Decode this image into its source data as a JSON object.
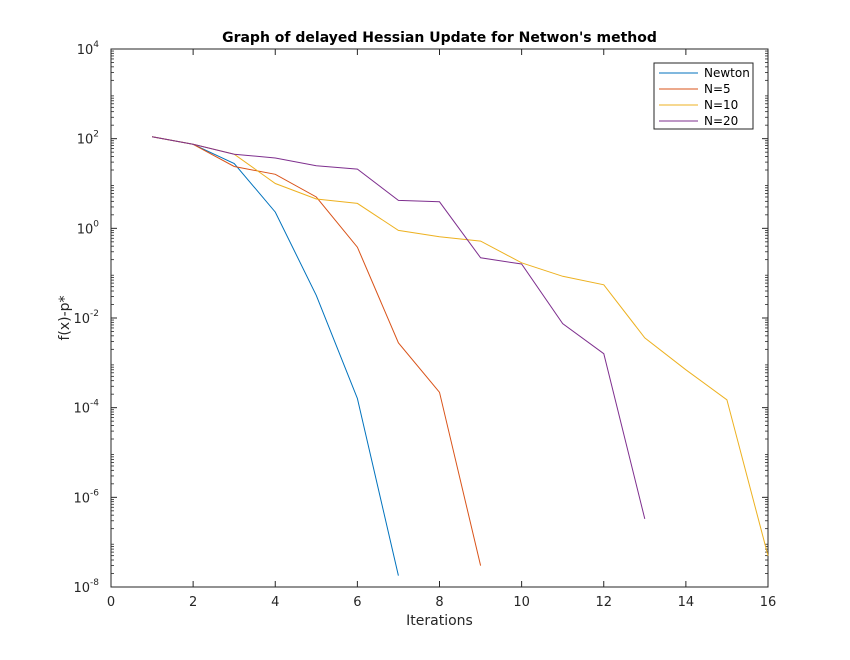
{
  "chart_data": {
    "type": "line",
    "title": "Graph of delayed Hessian Update for Netwon's method",
    "xlabel": "Iterations",
    "ylabel": "f(x)-p*",
    "xlim": [
      0,
      16
    ],
    "ylim": [
      1e-08,
      10000
    ],
    "yscale": "log",
    "x_ticks": [
      0,
      2,
      4,
      6,
      8,
      10,
      12,
      14,
      16
    ],
    "y_tick_exponents": [
      -8,
      -6,
      -4,
      -2,
      0,
      2,
      4
    ],
    "grid": false,
    "legend_position": "top-right",
    "series": [
      {
        "name": "Newton",
        "color": "#0072BD",
        "x": [
          1,
          2,
          3,
          4,
          5,
          6,
          7
        ],
        "y": [
          110,
          75,
          28,
          2.3,
          0.032,
          0.00016,
          1.8e-08
        ]
      },
      {
        "name": "N=5",
        "color": "#D95319",
        "x": [
          1,
          2,
          3,
          4,
          5,
          6,
          7,
          8,
          9
        ],
        "y": [
          110,
          75,
          24,
          16,
          5,
          0.38,
          0.0028,
          0.00022,
          3e-08
        ]
      },
      {
        "name": "N=10",
        "color": "#EDB120",
        "x": [
          1,
          2,
          3,
          4,
          5,
          6,
          7,
          8,
          9,
          10,
          11,
          12,
          13,
          14,
          15,
          16
        ],
        "y": [
          110,
          75,
          45,
          10,
          4.5,
          3.6,
          0.9,
          0.65,
          0.52,
          0.17,
          0.085,
          0.055,
          0.0036,
          0.0007,
          0.00015,
          5e-08
        ]
      },
      {
        "name": "N=20",
        "color": "#7E2F8E",
        "x": [
          1,
          2,
          3,
          4,
          5,
          6,
          7,
          8,
          9,
          10,
          11,
          12,
          13
        ],
        "y": [
          110,
          75,
          45,
          37,
          25,
          21,
          4.2,
          3.9,
          0.22,
          0.16,
          0.0075,
          0.0016,
          3.3e-07
        ]
      }
    ]
  }
}
